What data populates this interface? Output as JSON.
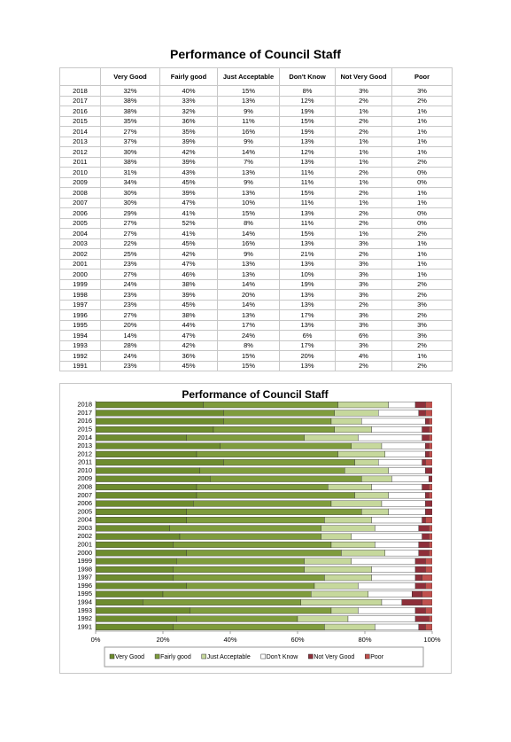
{
  "table": {
    "title": "Performance of Council Staff",
    "columns": [
      "Very Good",
      "Fairly good",
      "Just Acceptable",
      "Don't Know",
      "Not Very Good",
      "Poor"
    ],
    "rows": [
      [
        "2018",
        "32%",
        "40%",
        "15%",
        "8%",
        "3%",
        "3%"
      ],
      [
        "2017",
        "38%",
        "33%",
        "13%",
        "12%",
        "2%",
        "2%"
      ],
      [
        "2016",
        "38%",
        "32%",
        "9%",
        "19%",
        "1%",
        "1%"
      ],
      [
        "2015",
        "35%",
        "36%",
        "11%",
        "15%",
        "2%",
        "1%"
      ],
      [
        "2014",
        "27%",
        "35%",
        "16%",
        "19%",
        "2%",
        "1%"
      ],
      [
        "2013",
        "37%",
        "39%",
        "9%",
        "13%",
        "1%",
        "1%"
      ],
      [
        "2012",
        "30%",
        "42%",
        "14%",
        "12%",
        "1%",
        "1%"
      ],
      [
        "2011",
        "38%",
        "39%",
        "7%",
        "13%",
        "1%",
        "2%"
      ],
      [
        "2010",
        "31%",
        "43%",
        "13%",
        "11%",
        "2%",
        "0%"
      ],
      [
        "2009",
        "34%",
        "45%",
        "9%",
        "11%",
        "1%",
        "0%"
      ],
      [
        "2008",
        "30%",
        "39%",
        "13%",
        "15%",
        "2%",
        "1%"
      ],
      [
        "2007",
        "30%",
        "47%",
        "10%",
        "11%",
        "1%",
        "1%"
      ],
      [
        "2006",
        "29%",
        "41%",
        "15%",
        "13%",
        "2%",
        "0%"
      ],
      [
        "2005",
        "27%",
        "52%",
        "8%",
        "11%",
        "2%",
        "0%"
      ],
      [
        "2004",
        "27%",
        "41%",
        "14%",
        "15%",
        "1%",
        "2%"
      ],
      [
        "2003",
        "22%",
        "45%",
        "16%",
        "13%",
        "3%",
        "1%"
      ],
      [
        "2002",
        "25%",
        "42%",
        "9%",
        "21%",
        "2%",
        "1%"
      ],
      [
        "2001",
        "23%",
        "47%",
        "13%",
        "13%",
        "3%",
        "1%"
      ],
      [
        "2000",
        "27%",
        "46%",
        "13%",
        "10%",
        "3%",
        "1%"
      ],
      [
        "1999",
        "24%",
        "38%",
        "14%",
        "19%",
        "3%",
        "2%"
      ],
      [
        "1998",
        "23%",
        "39%",
        "20%",
        "13%",
        "3%",
        "2%"
      ],
      [
        "1997",
        "23%",
        "45%",
        "14%",
        "13%",
        "2%",
        "3%"
      ],
      [
        "1996",
        "27%",
        "38%",
        "13%",
        "17%",
        "3%",
        "2%"
      ],
      [
        "1995",
        "20%",
        "44%",
        "17%",
        "13%",
        "3%",
        "3%"
      ],
      [
        "1994",
        "14%",
        "47%",
        "24%",
        "6%",
        "6%",
        "3%"
      ],
      [
        "1993",
        "28%",
        "42%",
        "8%",
        "17%",
        "3%",
        "2%"
      ],
      [
        "1992",
        "24%",
        "36%",
        "15%",
        "20%",
        "4%",
        "1%"
      ],
      [
        "1991",
        "23%",
        "45%",
        "15%",
        "13%",
        "2%",
        "2%"
      ]
    ]
  },
  "chart_data": {
    "type": "stacked-horizontal-bar",
    "title": "Performance of Council Staff",
    "categories": [
      "2018",
      "2017",
      "2016",
      "2015",
      "2014",
      "2013",
      "2012",
      "2011",
      "2010",
      "2009",
      "2008",
      "2007",
      "2006",
      "2005",
      "2004",
      "2003",
      "2002",
      "2001",
      "2000",
      "1999",
      "1998",
      "1997",
      "1996",
      "1995",
      "1994",
      "1993",
      "1992",
      "1991"
    ],
    "series": [
      {
        "name": "Very Good",
        "color": "#6e8c2e",
        "values": [
          32,
          38,
          38,
          35,
          27,
          37,
          30,
          38,
          31,
          34,
          30,
          30,
          29,
          27,
          27,
          22,
          25,
          23,
          27,
          24,
          23,
          23,
          27,
          20,
          14,
          28,
          24,
          23
        ]
      },
      {
        "name": "Fairly good",
        "color": "#7f9c3d",
        "values": [
          40,
          33,
          32,
          36,
          35,
          39,
          42,
          39,
          43,
          45,
          39,
          47,
          41,
          52,
          41,
          45,
          42,
          47,
          46,
          38,
          39,
          45,
          38,
          44,
          47,
          42,
          36,
          45
        ]
      },
      {
        "name": "Just Acceptable",
        "color": "#c6d89c",
        "values": [
          15,
          13,
          9,
          11,
          16,
          9,
          14,
          7,
          13,
          9,
          13,
          10,
          15,
          8,
          14,
          16,
          9,
          13,
          13,
          14,
          20,
          14,
          13,
          17,
          24,
          8,
          15,
          15
        ]
      },
      {
        "name": "Don't Know",
        "color": "#ffffff",
        "values": [
          8,
          12,
          19,
          15,
          19,
          13,
          12,
          13,
          11,
          11,
          15,
          11,
          13,
          11,
          15,
          13,
          21,
          13,
          10,
          19,
          13,
          13,
          17,
          13,
          6,
          17,
          20,
          13
        ]
      },
      {
        "name": "Not Very Good",
        "color": "#8e2f3a",
        "values": [
          3,
          2,
          1,
          2,
          2,
          1,
          1,
          1,
          2,
          1,
          2,
          1,
          2,
          2,
          1,
          3,
          2,
          3,
          3,
          3,
          3,
          2,
          3,
          3,
          6,
          3,
          4,
          2
        ]
      },
      {
        "name": "Poor",
        "color": "#c0504d",
        "values": [
          3,
          2,
          1,
          1,
          1,
          1,
          1,
          2,
          0,
          0,
          1,
          1,
          0,
          0,
          2,
          1,
          1,
          1,
          1,
          2,
          2,
          3,
          2,
          3,
          3,
          2,
          1,
          2
        ]
      }
    ],
    "xlim": [
      0,
      100
    ],
    "xticks": [
      {
        "value": 0,
        "label": "0%"
      },
      {
        "value": 20,
        "label": "20%"
      },
      {
        "value": 40,
        "label": "40%"
      },
      {
        "value": 60,
        "label": "60%"
      },
      {
        "value": 80,
        "label": "80%"
      },
      {
        "value": 100,
        "label": "100%"
      }
    ],
    "legend": "bottom"
  }
}
